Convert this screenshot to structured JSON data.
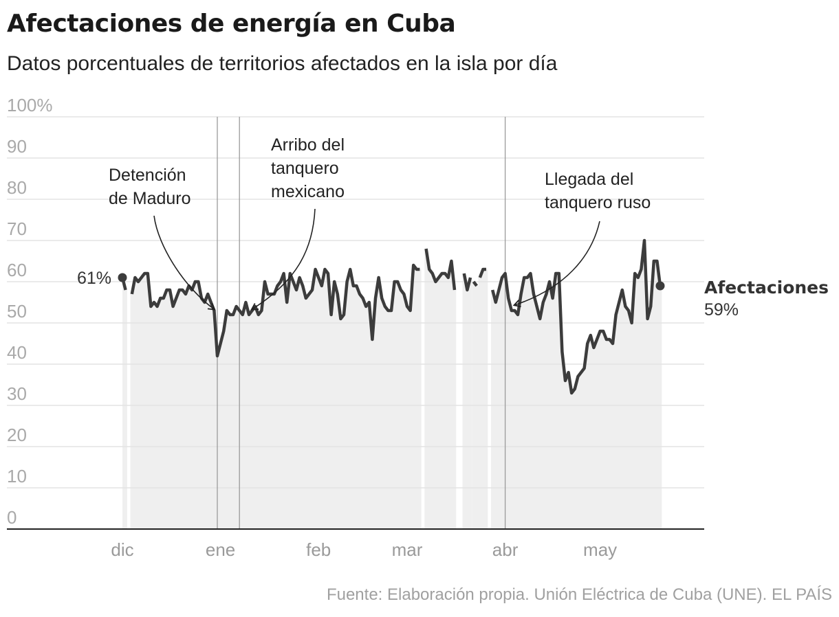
{
  "title": "Afectaciones de energía en Cuba",
  "subtitle": "Datos porcentuales de territorios afectados en la isla por día",
  "source": "Fuente: Elaboración propia. Unión Eléctrica de Cuba (UNE). EL PAÍS",
  "colors": {
    "line": "#3c3c3c",
    "area": "#efefef",
    "grid": "#e3e3e3",
    "axis": "#222222",
    "event": "#9a9a9a"
  },
  "chart_data": {
    "type": "area",
    "title": "Afectaciones de energía en Cuba",
    "subtitle": "Datos porcentuales de territorios afectados en la isla por día",
    "xlabel": "",
    "ylabel": "",
    "ylim": [
      0,
      100
    ],
    "yticks": [
      {
        "value": 0,
        "label": "0"
      },
      {
        "value": 10,
        "label": "10"
      },
      {
        "value": 20,
        "label": "20"
      },
      {
        "value": 30,
        "label": "30"
      },
      {
        "value": 40,
        "label": "40"
      },
      {
        "value": 50,
        "label": "50"
      },
      {
        "value": 60,
        "label": "60"
      },
      {
        "value": 70,
        "label": "70"
      },
      {
        "value": 80,
        "label": "80"
      },
      {
        "value": 90,
        "label": "90"
      },
      {
        "value": 100,
        "label": "100%"
      }
    ],
    "xlim": [
      "2025-12-01",
      "2026-05-31"
    ],
    "xticks": [
      {
        "date": "2025-12-01",
        "label": "dic"
      },
      {
        "date": "2026-01-01",
        "label": "ene"
      },
      {
        "date": "2026-02-01",
        "label": "feb"
      },
      {
        "date": "2026-03-01",
        "label": "mar"
      },
      {
        "date": "2026-04-01",
        "label": "abr"
      },
      {
        "date": "2026-05-01",
        "label": "may"
      }
    ],
    "grid": true,
    "series": [
      {
        "name": "Afectaciones",
        "unit": "%",
        "segments": [
          [
            [
              "2025-12-01",
              61
            ],
            [
              "2025-12-02",
              58
            ]
          ],
          [
            [
              "2025-12-04",
              57
            ],
            [
              "2025-12-05",
              61
            ],
            [
              "2025-12-06",
              60
            ],
            [
              "2025-12-07",
              61
            ],
            [
              "2025-12-08",
              62
            ],
            [
              "2025-12-09",
              62
            ],
            [
              "2025-12-10",
              54
            ],
            [
              "2025-12-11",
              55
            ],
            [
              "2025-12-12",
              54
            ],
            [
              "2025-12-13",
              56
            ],
            [
              "2025-12-14",
              56
            ],
            [
              "2025-12-15",
              58
            ],
            [
              "2025-12-16",
              58
            ],
            [
              "2025-12-17",
              54
            ],
            [
              "2025-12-18",
              56
            ],
            [
              "2025-12-19",
              58
            ],
            [
              "2025-12-20",
              58
            ],
            [
              "2025-12-21",
              57
            ],
            [
              "2025-12-22",
              59
            ],
            [
              "2025-12-23",
              58
            ],
            [
              "2025-12-24",
              60
            ],
            [
              "2025-12-25",
              60
            ],
            [
              "2025-12-26",
              56
            ],
            [
              "2025-12-27",
              55
            ],
            [
              "2025-12-28",
              57
            ],
            [
              "2025-12-29",
              55
            ],
            [
              "2025-12-30",
              53
            ],
            [
              "2025-12-31",
              42
            ],
            [
              "2026-01-01",
              45
            ],
            [
              "2026-01-02",
              48
            ],
            [
              "2026-01-03",
              53
            ],
            [
              "2026-01-04",
              52
            ],
            [
              "2026-01-05",
              52
            ],
            [
              "2026-01-06",
              54
            ],
            [
              "2026-01-07",
              53
            ],
            [
              "2026-01-08",
              52
            ],
            [
              "2026-01-09",
              55
            ],
            [
              "2026-01-10",
              52
            ],
            [
              "2026-01-11",
              53
            ],
            [
              "2026-01-12",
              54
            ],
            [
              "2026-01-13",
              52
            ],
            [
              "2026-01-14",
              53
            ],
            [
              "2026-01-15",
              60
            ],
            [
              "2026-01-16",
              57
            ],
            [
              "2026-01-17",
              57
            ],
            [
              "2026-01-18",
              57
            ],
            [
              "2026-01-19",
              59
            ],
            [
              "2026-01-20",
              60
            ],
            [
              "2026-01-21",
              62
            ],
            [
              "2026-01-22",
              55
            ],
            [
              "2026-01-23",
              62
            ],
            [
              "2026-01-24",
              60
            ],
            [
              "2026-01-25",
              58
            ],
            [
              "2026-01-26",
              61
            ],
            [
              "2026-01-27",
              59
            ],
            [
              "2026-01-28",
              56
            ],
            [
              "2026-01-29",
              57
            ],
            [
              "2026-01-30",
              58
            ],
            [
              "2026-01-31",
              63
            ],
            [
              "2026-02-01",
              61
            ],
            [
              "2026-02-02",
              59
            ],
            [
              "2026-02-03",
              63
            ],
            [
              "2026-02-04",
              62
            ],
            [
              "2026-02-05",
              52
            ],
            [
              "2026-02-06",
              60
            ],
            [
              "2026-02-07",
              57
            ],
            [
              "2026-02-08",
              51
            ],
            [
              "2026-02-09",
              52
            ],
            [
              "2026-02-10",
              60
            ],
            [
              "2026-02-11",
              63
            ],
            [
              "2026-02-12",
              59
            ],
            [
              "2026-02-13",
              59
            ],
            [
              "2026-02-14",
              57
            ],
            [
              "2026-02-15",
              56
            ],
            [
              "2026-02-16",
              54
            ],
            [
              "2026-02-17",
              55
            ],
            [
              "2026-02-18",
              46
            ],
            [
              "2026-02-19",
              56
            ],
            [
              "2026-02-20",
              61
            ],
            [
              "2026-02-21",
              56
            ],
            [
              "2026-02-22",
              54
            ],
            [
              "2026-02-23",
              53
            ],
            [
              "2026-02-24",
              53
            ],
            [
              "2026-02-25",
              60
            ],
            [
              "2026-02-26",
              60
            ],
            [
              "2026-02-27",
              58
            ],
            [
              "2026-02-28",
              57
            ],
            [
              "2026-03-01",
              54
            ],
            [
              "2026-03-02",
              53
            ],
            [
              "2026-03-03",
              64
            ],
            [
              "2026-03-04",
              63
            ],
            [
              "2026-03-05",
              63
            ]
          ],
          [
            [
              "2026-03-07",
              68
            ],
            [
              "2026-03-08",
              63
            ],
            [
              "2026-03-09",
              62
            ],
            [
              "2026-03-10",
              60
            ],
            [
              "2026-03-11",
              61
            ],
            [
              "2026-03-12",
              62
            ],
            [
              "2026-03-13",
              62
            ],
            [
              "2026-03-14",
              61
            ],
            [
              "2026-03-15",
              65
            ],
            [
              "2026-03-16",
              58
            ]
          ],
          [
            [
              "2026-03-19",
              62
            ],
            [
              "2026-03-20",
              58
            ],
            [
              "2026-03-21",
              61
            ]
          ],
          [
            [
              "2026-03-22",
              60
            ],
            [
              "2026-03-23",
              59
            ]
          ],
          [
            [
              "2026-03-24",
              61
            ],
            [
              "2026-03-25",
              63
            ],
            [
              "2026-03-26",
              63
            ]
          ],
          [
            [
              "2026-03-28",
              58
            ],
            [
              "2026-03-29",
              55
            ],
            [
              "2026-03-30",
              58
            ],
            [
              "2026-03-31",
              61
            ],
            [
              "2026-04-01",
              62
            ],
            [
              "2026-04-02",
              56
            ],
            [
              "2026-04-03",
              53
            ],
            [
              "2026-04-04",
              53
            ],
            [
              "2026-04-05",
              52
            ],
            [
              "2026-04-06",
              57
            ],
            [
              "2026-04-07",
              61
            ],
            [
              "2026-04-08",
              61
            ],
            [
              "2026-04-09",
              62
            ],
            [
              "2026-04-10",
              57
            ],
            [
              "2026-04-11",
              54
            ],
            [
              "2026-04-12",
              51
            ],
            [
              "2026-04-13",
              55
            ],
            [
              "2026-04-14",
              57
            ],
            [
              "2026-04-15",
              60
            ],
            [
              "2026-04-16",
              56
            ],
            [
              "2026-04-17",
              62
            ],
            [
              "2026-04-18",
              62
            ],
            [
              "2026-04-19",
              43
            ],
            [
              "2026-04-20",
              36
            ],
            [
              "2026-04-21",
              38
            ],
            [
              "2026-04-22",
              33
            ],
            [
              "2026-04-23",
              34
            ],
            [
              "2026-04-24",
              37
            ],
            [
              "2026-04-25",
              38
            ],
            [
              "2026-04-26",
              39
            ],
            [
              "2026-04-27",
              45
            ],
            [
              "2026-04-28",
              47
            ],
            [
              "2026-04-29",
              44
            ],
            [
              "2026-04-30",
              46
            ],
            [
              "2026-05-01",
              48
            ],
            [
              "2026-05-02",
              48
            ],
            [
              "2026-05-03",
              46
            ],
            [
              "2026-05-04",
              46
            ],
            [
              "2026-05-05",
              45
            ],
            [
              "2026-05-06",
              52
            ],
            [
              "2026-05-07",
              55
            ],
            [
              "2026-05-08",
              58
            ],
            [
              "2026-05-09",
              54
            ],
            [
              "2026-05-10",
              53
            ],
            [
              "2026-05-11",
              50
            ],
            [
              "2026-05-12",
              62
            ],
            [
              "2026-05-13",
              61
            ],
            [
              "2026-05-14",
              63
            ],
            [
              "2026-05-15",
              70
            ],
            [
              "2026-05-16",
              51
            ],
            [
              "2026-05-17",
              54
            ],
            [
              "2026-05-18",
              65
            ],
            [
              "2026-05-19",
              65
            ],
            [
              "2026-05-20",
              59
            ]
          ]
        ]
      }
    ],
    "endpoints": {
      "start": {
        "date": "2025-12-01",
        "value": 61,
        "label": "61%"
      },
      "end": {
        "date": "2026-05-20",
        "value": 59,
        "name": "Afectaciones",
        "label": "59%"
      }
    },
    "annotations": [
      {
        "lines": [
          "Detención",
          "de Maduro"
        ],
        "date": "2025-12-30",
        "value": 53,
        "event_line": "2025-12-31"
      },
      {
        "lines": [
          "Arribo del",
          "tanquero",
          "mexicano"
        ],
        "date": "2026-01-11",
        "value": 53,
        "event_line": "2026-01-07"
      },
      {
        "lines": [
          "Llegada del",
          "tanquero ruso"
        ],
        "date": "2026-04-04",
        "value": 54,
        "event_line": "2026-04-01"
      }
    ]
  }
}
